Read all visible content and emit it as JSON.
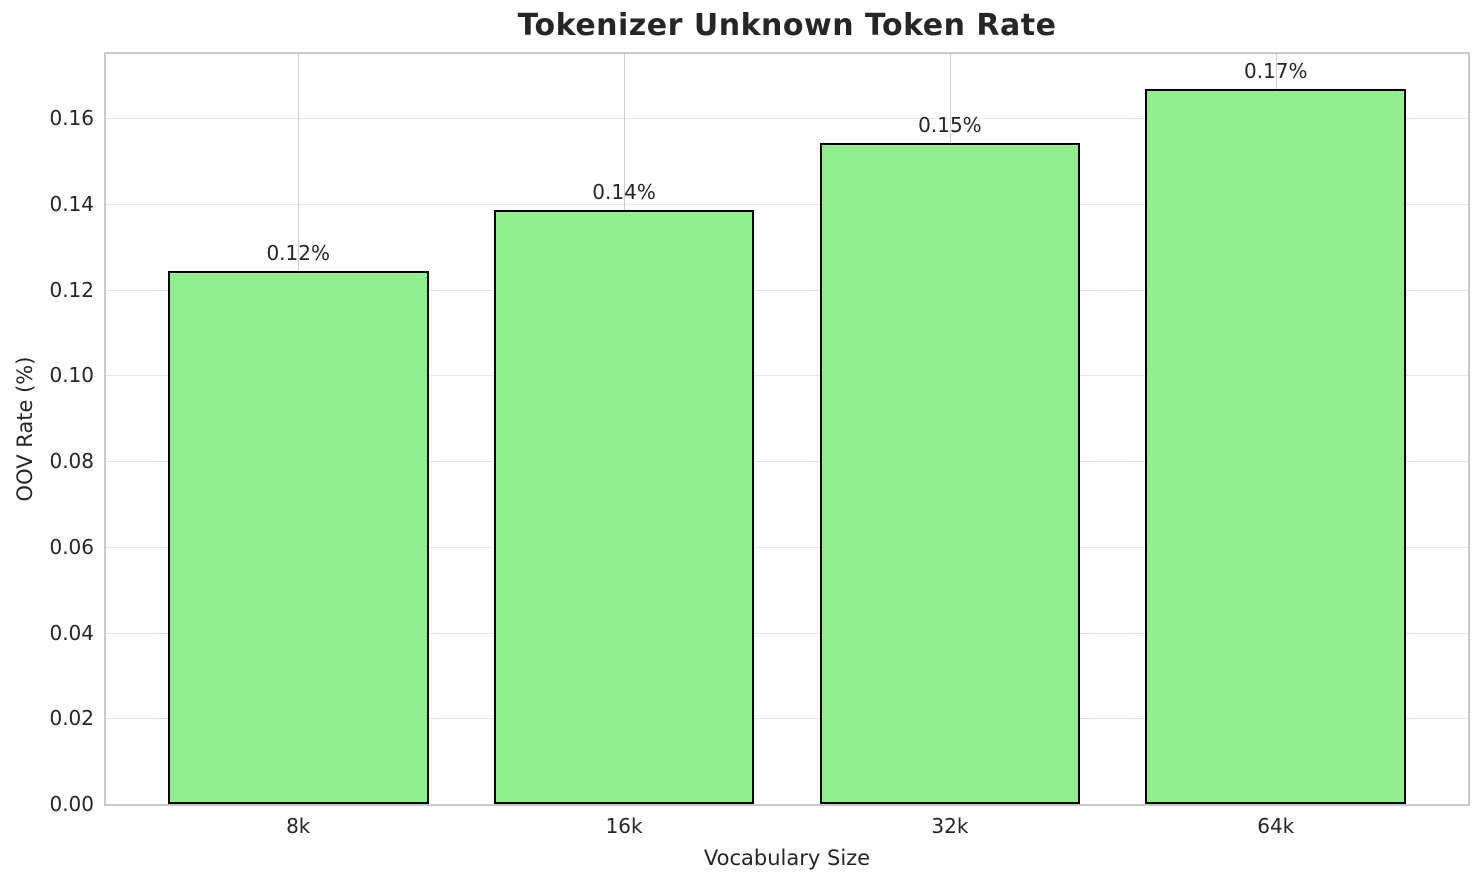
{
  "chart_data": {
    "type": "bar",
    "title": "Tokenizer Unknown Token Rate",
    "xlabel": "Vocabulary Size",
    "ylabel": "OOV Rate (%)",
    "categories": [
      "8k",
      "16k",
      "32k",
      "64k"
    ],
    "values": [
      0.1243,
      0.1387,
      0.1542,
      0.1668
    ],
    "bar_labels": [
      "0.12%",
      "0.14%",
      "0.15%",
      "0.17%"
    ],
    "yticks": [
      0.0,
      0.02,
      0.04,
      0.06,
      0.08,
      0.1,
      0.12,
      0.14,
      0.16
    ],
    "ytick_labels": [
      "0.00",
      "0.02",
      "0.04",
      "0.06",
      "0.08",
      "0.10",
      "0.12",
      "0.14",
      "0.16"
    ],
    "ylim": [
      0,
      0.175
    ],
    "xlim": [
      -0.59,
      3.59
    ],
    "bar_width": 0.8,
    "grid": true,
    "legend": "none",
    "bar_color": "#90EE90",
    "bar_edge_color": "#000000"
  }
}
